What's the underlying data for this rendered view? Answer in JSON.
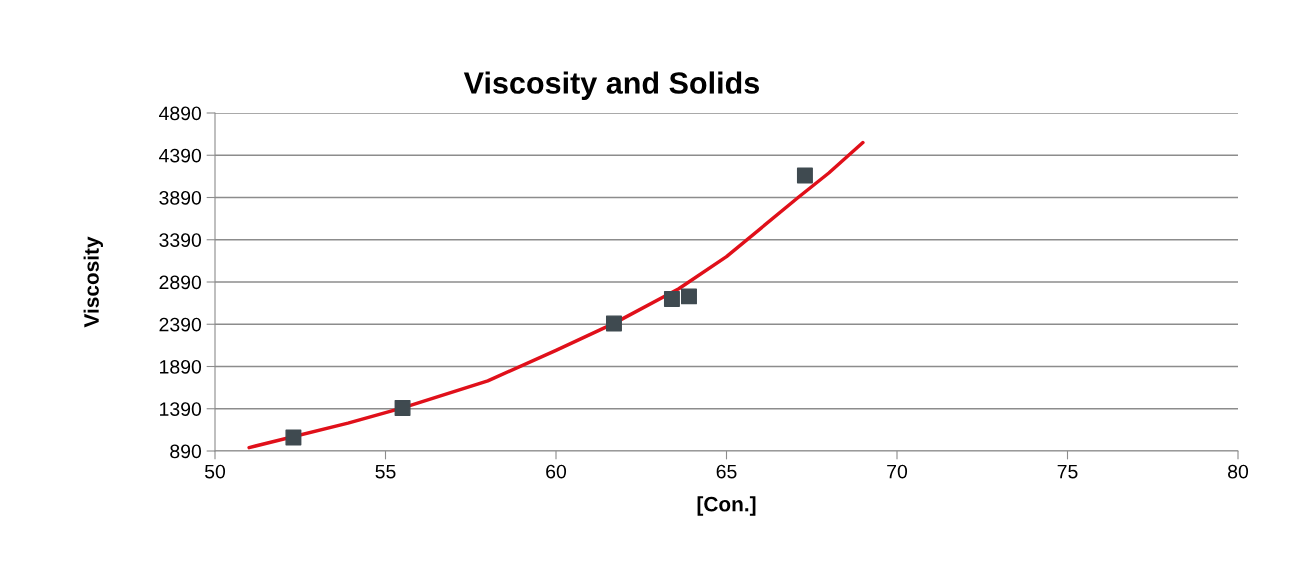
{
  "chart_data": {
    "type": "scatter",
    "title": "Viscosity and Solids",
    "xlabel": "[Con.]",
    "ylabel": "Viscosity",
    "xlim": [
      50,
      80
    ],
    "xticks": [
      50,
      55,
      60,
      65,
      70,
      75,
      80
    ],
    "ylim": [
      890,
      4890
    ],
    "yticks": [
      890,
      1390,
      1890,
      2390,
      2890,
      3390,
      3890,
      4390,
      4890
    ],
    "grid": "y",
    "series": [
      {
        "marker": "square",
        "color": "#3f4a50",
        "x": [
          52.3,
          55.5,
          61.7,
          63.4,
          63.9,
          67.3
        ],
        "values": [
          1050,
          1400,
          2400,
          2690,
          2720,
          4150
        ]
      },
      {
        "type": "line",
        "marker": "none",
        "color": "#e0101a",
        "x": [
          51,
          53.9,
          55.5,
          58,
          60,
          61.7,
          63.6,
          65,
          67.1,
          68,
          69
        ],
        "values": [
          930,
          1220,
          1400,
          1720,
          2080,
          2400,
          2810,
          3190,
          3890,
          4180,
          4540
        ]
      }
    ]
  }
}
